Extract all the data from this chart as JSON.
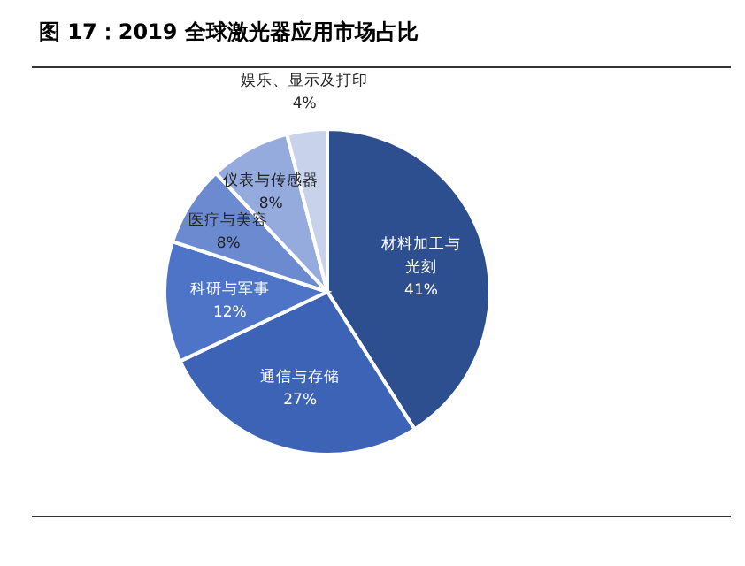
{
  "chart_data": {
    "type": "pie",
    "title": "图 17：2019 全球激光器应用市场占比",
    "categories": [
      "材料加工与光刻",
      "通信与存储",
      "科研与军事",
      "医疗与美容",
      "仪表与传感器",
      "娱乐、显示及打印"
    ],
    "values": [
      41,
      27,
      12,
      8,
      8,
      4
    ],
    "colors": [
      "#2e4f8f",
      "#3c63b5",
      "#4d74c6",
      "#6c8ad0",
      "#95abdd",
      "#c8d2ea"
    ],
    "value_labels": [
      "41%",
      "27%",
      "12%",
      "8%",
      "8%",
      "4%"
    ]
  }
}
